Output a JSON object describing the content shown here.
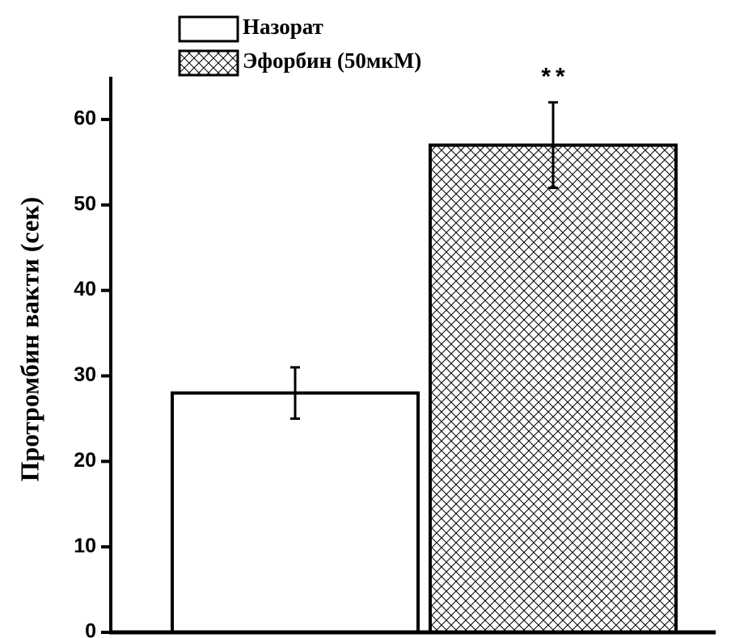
{
  "chart_data": {
    "type": "bar",
    "ylabel": "Протромбин вакти (сек)",
    "annotation": "**",
    "series": [
      {
        "name": "Назорат",
        "color": "#000000",
        "hatch": "none",
        "values": [
          28
        ],
        "errors": [
          3
        ]
      },
      {
        "name": "Эфорбин (50мкМ)",
        "color": "#000000",
        "hatch": "crosshatch",
        "values": [
          57
        ],
        "errors": [
          5
        ]
      }
    ],
    "ylim": [
      0,
      65
    ],
    "yticks": [
      0,
      10,
      20,
      30,
      40,
      50,
      60
    ],
    "grid": false,
    "legend": "top-left"
  }
}
